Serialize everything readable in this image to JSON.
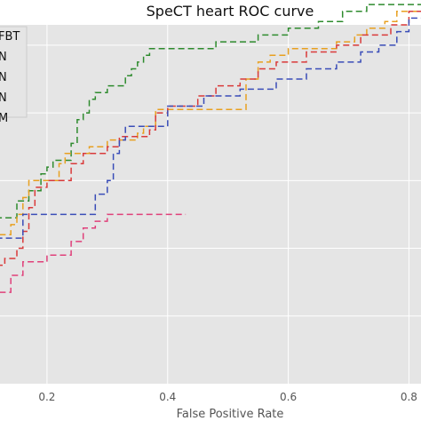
{
  "chart_data": {
    "type": "line",
    "title": "SpeCT heart  ROC curve",
    "xlabel": "False Positive Rate",
    "ylabel": "",
    "xlim": [
      0.1,
      0.82
    ],
    "ylim": [
      0.0,
      1.06
    ],
    "x_ticks": [
      0.2,
      0.4,
      0.6,
      0.8
    ],
    "x_tick_labels": [
      "0.2",
      "0.4",
      "0.6",
      "0.8"
    ],
    "y_ticks": [
      0.2,
      0.4,
      0.6,
      0.8,
      1.0
    ],
    "grid": true,
    "legend_placement": "top-left",
    "background": "#e5e5e5",
    "series": [
      {
        "name": "FBT",
        "color": "#2e8b2e",
        "points": [
          [
            0.1,
            0.43
          ],
          [
            0.12,
            0.43
          ],
          [
            0.12,
            0.49
          ],
          [
            0.15,
            0.49
          ],
          [
            0.15,
            0.54
          ],
          [
            0.17,
            0.54
          ],
          [
            0.17,
            0.57
          ],
          [
            0.19,
            0.57
          ],
          [
            0.19,
            0.62
          ],
          [
            0.2,
            0.62
          ],
          [
            0.2,
            0.64
          ],
          [
            0.21,
            0.64
          ],
          [
            0.21,
            0.66
          ],
          [
            0.24,
            0.66
          ],
          [
            0.24,
            0.71
          ],
          [
            0.25,
            0.71
          ],
          [
            0.25,
            0.78
          ],
          [
            0.26,
            0.78
          ],
          [
            0.26,
            0.8
          ],
          [
            0.27,
            0.8
          ],
          [
            0.27,
            0.84
          ],
          [
            0.28,
            0.84
          ],
          [
            0.28,
            0.86
          ],
          [
            0.3,
            0.86
          ],
          [
            0.3,
            0.88
          ],
          [
            0.33,
            0.88
          ],
          [
            0.33,
            0.91
          ],
          [
            0.34,
            0.91
          ],
          [
            0.34,
            0.93
          ],
          [
            0.35,
            0.93
          ],
          [
            0.35,
            0.95
          ],
          [
            0.36,
            0.95
          ],
          [
            0.36,
            0.97
          ],
          [
            0.37,
            0.97
          ],
          [
            0.37,
            0.99
          ],
          [
            0.48,
            0.99
          ],
          [
            0.48,
            1.01
          ],
          [
            0.55,
            1.01
          ],
          [
            0.55,
            1.03
          ],
          [
            0.6,
            1.03
          ],
          [
            0.6,
            1.05
          ],
          [
            0.65,
            1.05
          ],
          [
            0.65,
            1.07
          ],
          [
            0.69,
            1.07
          ],
          [
            0.69,
            1.1
          ],
          [
            0.73,
            1.1
          ],
          [
            0.73,
            1.12
          ],
          [
            0.82,
            1.12
          ]
        ]
      },
      {
        "name": "N",
        "color": "#e8a020",
        "points": [
          [
            0.1,
            0.42
          ],
          [
            0.12,
            0.42
          ],
          [
            0.12,
            0.44
          ],
          [
            0.14,
            0.44
          ],
          [
            0.14,
            0.47
          ],
          [
            0.15,
            0.47
          ],
          [
            0.15,
            0.5
          ],
          [
            0.16,
            0.5
          ],
          [
            0.16,
            0.55
          ],
          [
            0.17,
            0.55
          ],
          [
            0.17,
            0.6
          ],
          [
            0.22,
            0.6
          ],
          [
            0.22,
            0.65
          ],
          [
            0.23,
            0.65
          ],
          [
            0.23,
            0.68
          ],
          [
            0.27,
            0.68
          ],
          [
            0.27,
            0.7
          ],
          [
            0.3,
            0.7
          ],
          [
            0.3,
            0.72
          ],
          [
            0.35,
            0.72
          ],
          [
            0.35,
            0.74
          ],
          [
            0.36,
            0.74
          ],
          [
            0.36,
            0.76
          ],
          [
            0.38,
            0.76
          ],
          [
            0.38,
            0.81
          ],
          [
            0.53,
            0.81
          ],
          [
            0.53,
            0.9
          ],
          [
            0.55,
            0.9
          ],
          [
            0.55,
            0.95
          ],
          [
            0.57,
            0.95
          ],
          [
            0.57,
            0.97
          ],
          [
            0.6,
            0.97
          ],
          [
            0.6,
            0.99
          ],
          [
            0.68,
            0.99
          ],
          [
            0.68,
            1.01
          ],
          [
            0.71,
            1.01
          ],
          [
            0.71,
            1.03
          ],
          [
            0.73,
            1.03
          ],
          [
            0.73,
            1.05
          ],
          [
            0.76,
            1.05
          ],
          [
            0.76,
            1.07
          ],
          [
            0.78,
            1.07
          ],
          [
            0.78,
            1.1
          ],
          [
            0.82,
            1.1
          ]
        ]
      },
      {
        "name": "N",
        "color": "#d93a3a",
        "points": [
          [
            0.1,
            0.35
          ],
          [
            0.13,
            0.35
          ],
          [
            0.13,
            0.37
          ],
          [
            0.15,
            0.37
          ],
          [
            0.15,
            0.4
          ],
          [
            0.16,
            0.4
          ],
          [
            0.16,
            0.45
          ],
          [
            0.17,
            0.45
          ],
          [
            0.17,
            0.52
          ],
          [
            0.18,
            0.52
          ],
          [
            0.18,
            0.58
          ],
          [
            0.2,
            0.58
          ],
          [
            0.2,
            0.6
          ],
          [
            0.24,
            0.6
          ],
          [
            0.24,
            0.65
          ],
          [
            0.26,
            0.65
          ],
          [
            0.26,
            0.68
          ],
          [
            0.3,
            0.68
          ],
          [
            0.3,
            0.7
          ],
          [
            0.32,
            0.7
          ],
          [
            0.32,
            0.73
          ],
          [
            0.37,
            0.73
          ],
          [
            0.37,
            0.75
          ],
          [
            0.38,
            0.75
          ],
          [
            0.38,
            0.8
          ],
          [
            0.4,
            0.8
          ],
          [
            0.4,
            0.82
          ],
          [
            0.45,
            0.82
          ],
          [
            0.45,
            0.85
          ],
          [
            0.48,
            0.85
          ],
          [
            0.48,
            0.88
          ],
          [
            0.52,
            0.88
          ],
          [
            0.52,
            0.9
          ],
          [
            0.55,
            0.9
          ],
          [
            0.55,
            0.93
          ],
          [
            0.58,
            0.93
          ],
          [
            0.58,
            0.95
          ],
          [
            0.63,
            0.95
          ],
          [
            0.63,
            0.98
          ],
          [
            0.68,
            0.98
          ],
          [
            0.68,
            1.0
          ],
          [
            0.72,
            1.0
          ],
          [
            0.72,
            1.03
          ],
          [
            0.77,
            1.03
          ],
          [
            0.77,
            1.06
          ],
          [
            0.8,
            1.06
          ],
          [
            0.8,
            1.1
          ],
          [
            0.82,
            1.1
          ]
        ]
      },
      {
        "name": "N",
        "color": "#3a4db8",
        "points": [
          [
            0.1,
            0.4
          ],
          [
            0.12,
            0.4
          ],
          [
            0.12,
            0.43
          ],
          [
            0.16,
            0.43
          ],
          [
            0.16,
            0.5
          ],
          [
            0.2,
            0.5
          ],
          [
            0.2,
            0.5
          ],
          [
            0.28,
            0.5
          ],
          [
            0.28,
            0.56
          ],
          [
            0.3,
            0.56
          ],
          [
            0.3,
            0.6
          ],
          [
            0.31,
            0.6
          ],
          [
            0.31,
            0.68
          ],
          [
            0.32,
            0.68
          ],
          [
            0.32,
            0.72
          ],
          [
            0.33,
            0.72
          ],
          [
            0.33,
            0.76
          ],
          [
            0.4,
            0.76
          ],
          [
            0.4,
            0.82
          ],
          [
            0.46,
            0.82
          ],
          [
            0.46,
            0.85
          ],
          [
            0.52,
            0.85
          ],
          [
            0.52,
            0.87
          ],
          [
            0.58,
            0.87
          ],
          [
            0.58,
            0.9
          ],
          [
            0.63,
            0.9
          ],
          [
            0.63,
            0.93
          ],
          [
            0.68,
            0.93
          ],
          [
            0.68,
            0.95
          ],
          [
            0.72,
            0.95
          ],
          [
            0.72,
            0.98
          ],
          [
            0.75,
            0.98
          ],
          [
            0.75,
            1.0
          ],
          [
            0.78,
            1.0
          ],
          [
            0.78,
            1.04
          ],
          [
            0.8,
            1.04
          ],
          [
            0.8,
            1.08
          ],
          [
            0.82,
            1.08
          ]
        ]
      },
      {
        "name": "M",
        "color": "#e0407a",
        "points": [
          [
            0.1,
            0.25
          ],
          [
            0.12,
            0.25
          ],
          [
            0.12,
            0.27
          ],
          [
            0.14,
            0.27
          ],
          [
            0.14,
            0.32
          ],
          [
            0.16,
            0.32
          ],
          [
            0.16,
            0.36
          ],
          [
            0.2,
            0.36
          ],
          [
            0.2,
            0.38
          ],
          [
            0.24,
            0.38
          ],
          [
            0.24,
            0.42
          ],
          [
            0.26,
            0.42
          ],
          [
            0.26,
            0.46
          ],
          [
            0.28,
            0.46
          ],
          [
            0.28,
            0.48
          ],
          [
            0.3,
            0.48
          ],
          [
            0.3,
            0.5
          ],
          [
            0.43,
            0.5
          ]
        ]
      }
    ]
  }
}
